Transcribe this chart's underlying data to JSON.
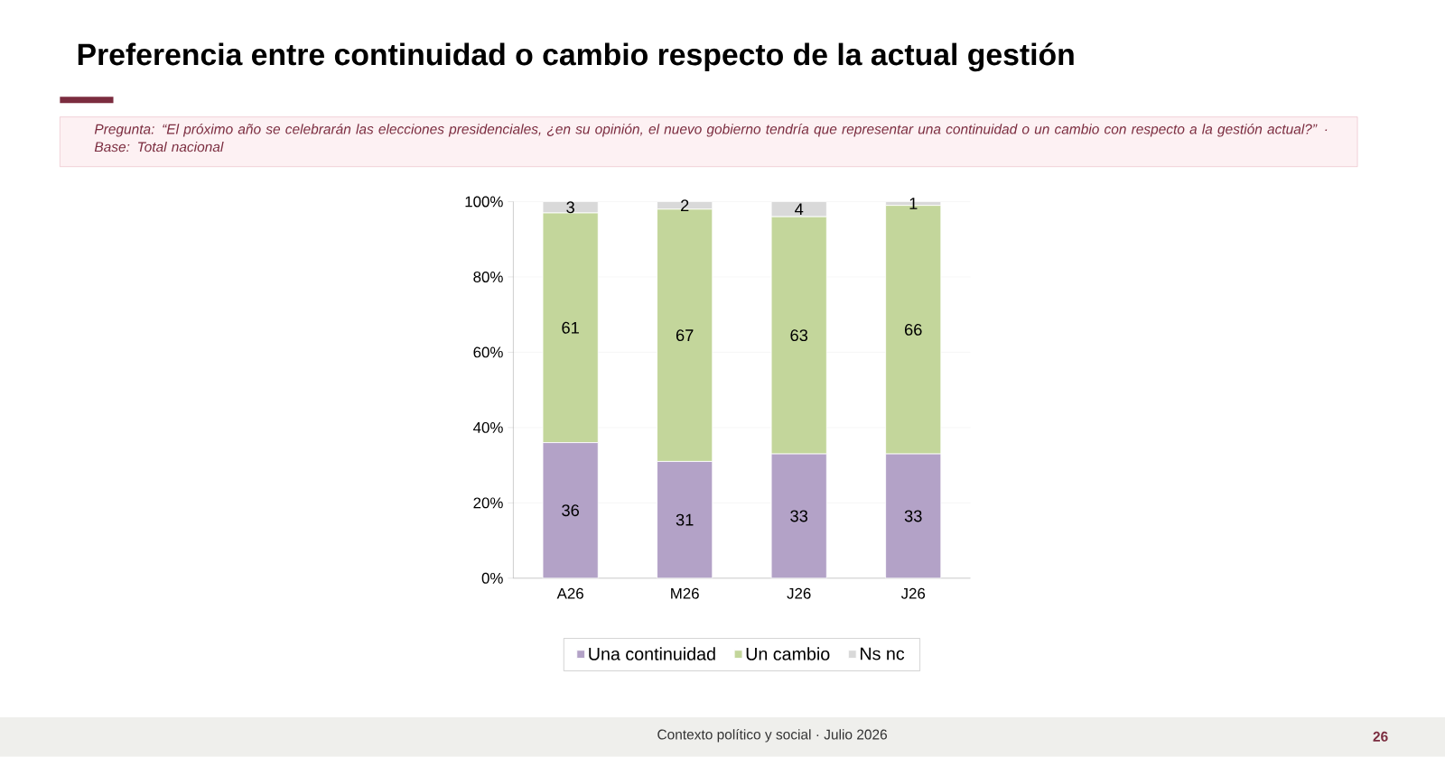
{
  "chart_data": {
    "type": "bar",
    "stacked": true,
    "title": "Preferencia entre continuidad o cambio respecto de la actual gestión",
    "subtitle": "Pregunta: “El próximo año se celebrarán las elecciones presidenciales, ¿en su opinión, el nuevo gobierno tendría que representar una continuidad o un cambio con respecto a la gestión actual?” ·  Base: Total nacional",
    "categories": [
      "A26",
      "M26",
      "J26",
      "J26"
    ],
    "series": [
      {
        "name": "Una continuidad",
        "color": "#b3a2c7",
        "values": [
          36,
          31,
          33,
          33
        ]
      },
      {
        "name": "Un cambio",
        "color": "#c3d69b",
        "values": [
          61,
          67,
          63,
          66
        ]
      },
      {
        "name": "Ns nc",
        "color": "#d9d9d9",
        "values": [
          3,
          2,
          4,
          1
        ]
      }
    ],
    "ylim": [
      0,
      100
    ],
    "yticks": [
      {
        "value": 0,
        "label": "0%"
      },
      {
        "value": 20,
        "label": "20%"
      },
      {
        "value": 40,
        "label": "40%"
      },
      {
        "value": 60,
        "label": "60%"
      },
      {
        "value": 80,
        "label": "80%"
      },
      {
        "value": 100,
        "label": "100%"
      }
    ],
    "grid": "y",
    "legend": "bottom",
    "data_labels": true,
    "annotations": [
      "Contexto político y social · Julio 2026",
      "26"
    ]
  }
}
